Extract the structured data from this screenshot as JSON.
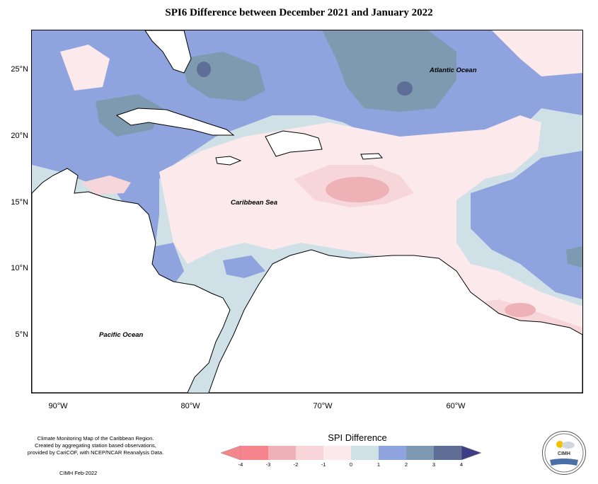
{
  "title": "SPI6 Difference between December 2021 and January 2022",
  "map": {
    "lat_labels": [
      "25°N",
      "20°N",
      "15°N",
      "10°N",
      "5°N"
    ],
    "lon_labels": [
      "90°W",
      "80°W",
      "70°W",
      "60°W"
    ],
    "ocean_labels": {
      "atlantic": "Atlantic Ocean",
      "caribbean": "Caribbean Sea",
      "pacific": "Pacific Ocean"
    },
    "colors": {
      "land": "#ffffff",
      "bin_-4": "#f5848c",
      "bin_-3": "#eeb1b6",
      "bin_-2": "#f7d6da",
      "bin_-1": "#fbe9eb",
      "bin_0": "#cfe0e6",
      "bin_1": "#8fa3df",
      "bin_2": "#7d9ab0",
      "bin_3": "#5e6e96"
    }
  },
  "legend": {
    "title": "SPI Difference",
    "ticks": [
      "-4",
      "-3",
      "-2",
      "-1",
      "0",
      "1",
      "2",
      "3",
      "4"
    ],
    "colors": [
      "#f5848c",
      "#eeb1b6",
      "#f7d6da",
      "#fbe9eb",
      "#cfe0e6",
      "#8fa3df",
      "#7d9ab0",
      "#5e6e96"
    ],
    "end_colors": {
      "low": "#f5848c",
      "high": "#3c3e86"
    }
  },
  "info_text": [
    "Climate Monitoring Map of the Caribbean Region.",
    "Created by aggregating station based observations,",
    "provided by CariCOF, with NCEP/NCAR Reanalysis Data."
  ],
  "credit": "CIMH Feb-2022",
  "logo": {
    "label": "CIMH"
  }
}
